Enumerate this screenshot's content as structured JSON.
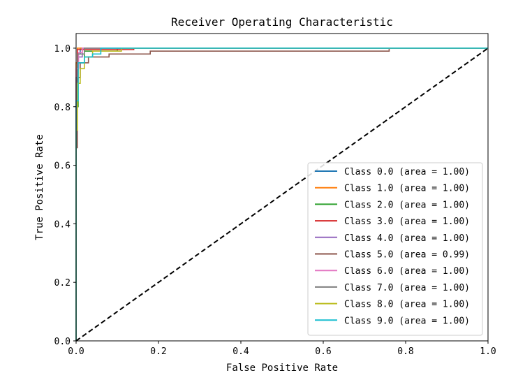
{
  "chart_data": {
    "type": "line",
    "title": "Receiver Operating Characteristic",
    "xlabel": "False Positive Rate",
    "ylabel": "True Positive Rate",
    "xlim": [
      0.0,
      1.0
    ],
    "ylim": [
      0.0,
      1.05
    ],
    "xticks": [
      0.0,
      0.2,
      0.4,
      0.6,
      0.8,
      1.0
    ],
    "xtick_labels": [
      "0.0",
      "0.2",
      "0.4",
      "0.6",
      "0.8",
      "1.0"
    ],
    "yticks": [
      0.0,
      0.2,
      0.4,
      0.6,
      0.8,
      1.0
    ],
    "ytick_labels": [
      "0.0",
      "0.2",
      "0.4",
      "0.6",
      "0.8",
      "1.0"
    ],
    "grid": false,
    "legend_position": "lower-right",
    "series": [
      {
        "name": "Class 0.0 (area = 1.00)",
        "color": "#1f77b4",
        "x": [
          0,
          0,
          0.004,
          0.004,
          0.01,
          0.01,
          1.0
        ],
        "y": [
          0,
          0.85,
          0.85,
          0.98,
          0.98,
          1.0,
          1.0
        ]
      },
      {
        "name": "Class 1.0 (area = 1.00)",
        "color": "#ff7f0e",
        "x": [
          0,
          0,
          0.003,
          0.003,
          1.0
        ],
        "y": [
          0,
          0.95,
          0.95,
          1.0,
          1.0
        ]
      },
      {
        "name": "Class 2.0 (area = 1.00)",
        "color": "#2ca02c",
        "x": [
          0,
          0,
          0.005,
          0.005,
          0.02,
          0.02,
          0.1,
          0.1,
          1.0
        ],
        "y": [
          0,
          0.8,
          0.8,
          0.95,
          0.95,
          0.99,
          0.99,
          1.0,
          1.0
        ]
      },
      {
        "name": "Class 3.0 (area = 1.00)",
        "color": "#d62728",
        "x": [
          0,
          0,
          0.003,
          0.003,
          0.14,
          0.14,
          1.0
        ],
        "y": [
          0,
          0.88,
          0.88,
          0.995,
          0.995,
          1.0,
          1.0
        ]
      },
      {
        "name": "Class 4.0 (area = 1.00)",
        "color": "#9467bd",
        "x": [
          0,
          0,
          0.004,
          0.004,
          0.015,
          0.015,
          1.0
        ],
        "y": [
          0,
          0.9,
          0.9,
          0.97,
          0.97,
          1.0,
          1.0
        ]
      },
      {
        "name": "Class 5.0 (area = 0.99)",
        "color": "#8c564b",
        "x": [
          0,
          0,
          0.003,
          0.003,
          0.01,
          0.01,
          0.03,
          0.03,
          0.08,
          0.08,
          0.18,
          0.18,
          0.76,
          0.76,
          1.0
        ],
        "y": [
          0,
          0.66,
          0.66,
          0.9,
          0.9,
          0.95,
          0.95,
          0.97,
          0.97,
          0.98,
          0.98,
          0.99,
          0.99,
          1.0,
          1.0
        ]
      },
      {
        "name": "Class 6.0 (area = 1.00)",
        "color": "#e377c2",
        "x": [
          0,
          0,
          0.006,
          0.006,
          0.015,
          0.015,
          1.0
        ],
        "y": [
          0,
          0.93,
          0.93,
          0.985,
          0.985,
          1.0,
          1.0
        ]
      },
      {
        "name": "Class 7.0 (area = 1.00)",
        "color": "#7f7f7f",
        "x": [
          0,
          0,
          0.004,
          0.004,
          0.02,
          0.02,
          1.0
        ],
        "y": [
          0,
          0.9,
          0.9,
          0.98,
          0.98,
          1.0,
          1.0
        ]
      },
      {
        "name": "Class 8.0 (area = 1.00)",
        "color": "#bcbd22",
        "x": [
          0,
          0,
          0.003,
          0.003,
          0.01,
          0.01,
          0.02,
          0.02,
          0.04,
          0.04,
          0.11,
          0.11,
          1.0
        ],
        "y": [
          0,
          0.72,
          0.72,
          0.88,
          0.88,
          0.93,
          0.93,
          0.97,
          0.97,
          0.99,
          0.99,
          1.0,
          1.0
        ]
      },
      {
        "name": "Class 9.0 (area = 1.00)",
        "color": "#17becf",
        "x": [
          0,
          0,
          0.005,
          0.005,
          0.02,
          0.02,
          0.04,
          0.04,
          0.06,
          0.06,
          1.0
        ],
        "y": [
          0,
          0.82,
          0.82,
          0.95,
          0.95,
          0.97,
          0.97,
          0.98,
          0.98,
          1.0,
          1.0
        ]
      }
    ],
    "diagonal": {
      "x": [
        0,
        1
      ],
      "y": [
        0,
        1
      ],
      "color": "#000000",
      "style": "dashed"
    }
  }
}
